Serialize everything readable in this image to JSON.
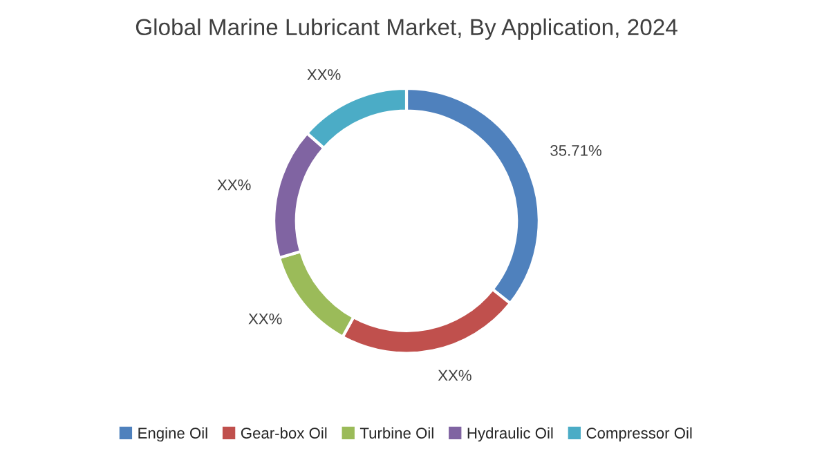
{
  "chart_data": {
    "type": "donut",
    "title": "Global Marine Lubricant Market, By Application, 2024",
    "categories": [
      "Engine Oil",
      "Gear-box Oil",
      "Turbine Oil",
      "Hydraulic Oil",
      "Compressor Oil"
    ],
    "values": [
      35.71,
      22.29,
      12.5,
      16,
      13.5
    ],
    "value_labels": [
      "35.71%",
      "XX%",
      "XX%",
      "XX%",
      "XX%"
    ],
    "colors": [
      "#4f81bd",
      "#c0504d",
      "#9bbb59",
      "#8064a2",
      "#4bacc6"
    ],
    "legend": "bottom"
  }
}
